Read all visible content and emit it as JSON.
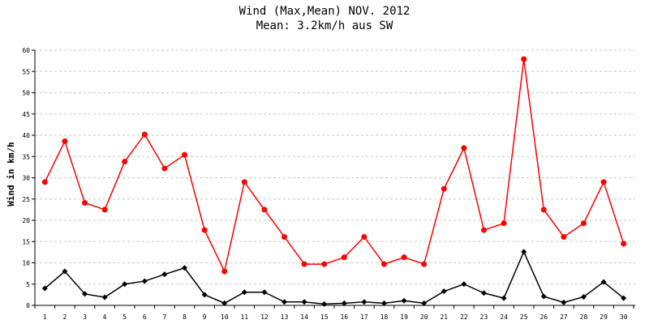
{
  "chart_data": {
    "type": "line",
    "title": "Wind (Max,Mean) NOV. 2012",
    "subtitle": "Mean: 3.2km/h aus SW",
    "xlabel": "",
    "ylabel": "Wind in km/h",
    "categories": [
      "1",
      "2",
      "3",
      "4",
      "5",
      "6",
      "7",
      "8",
      "9",
      "10",
      "11",
      "12",
      "13",
      "14",
      "15",
      "16",
      "17",
      "18",
      "19",
      "20",
      "21",
      "22",
      "23",
      "24",
      "25",
      "26",
      "27",
      "28",
      "29",
      "30"
    ],
    "ylim": [
      0,
      60
    ],
    "yticks": [
      "0",
      "5",
      "10",
      "15",
      "20",
      "25",
      "30",
      "35",
      "40",
      "45",
      "50",
      "55",
      "60"
    ],
    "grid": true,
    "legend": "none",
    "series": [
      {
        "color": "#ff0000",
        "marker": "circle",
        "values": [
          29.0,
          38.6,
          24.1,
          22.5,
          33.8,
          40.2,
          32.2,
          35.4,
          17.7,
          8.0,
          29.0,
          22.5,
          16.1,
          9.7,
          9.7,
          11.3,
          16.1,
          9.7,
          11.3,
          9.7,
          27.4,
          37.0,
          17.7,
          19.3,
          57.9,
          22.5,
          16.1,
          19.3,
          29.0,
          14.5
        ]
      },
      {
        "color": "#000000",
        "marker": "diamond",
        "values": [
          4.0,
          8.0,
          2.7,
          1.9,
          5.0,
          5.7,
          7.3,
          8.8,
          2.5,
          0.5,
          3.1,
          3.1,
          0.8,
          0.8,
          0.3,
          0.5,
          0.8,
          0.5,
          1.1,
          0.5,
          3.3,
          5.0,
          2.9,
          1.7,
          12.6,
          2.1,
          0.7,
          2.0,
          5.5,
          1.7
        ]
      }
    ]
  }
}
